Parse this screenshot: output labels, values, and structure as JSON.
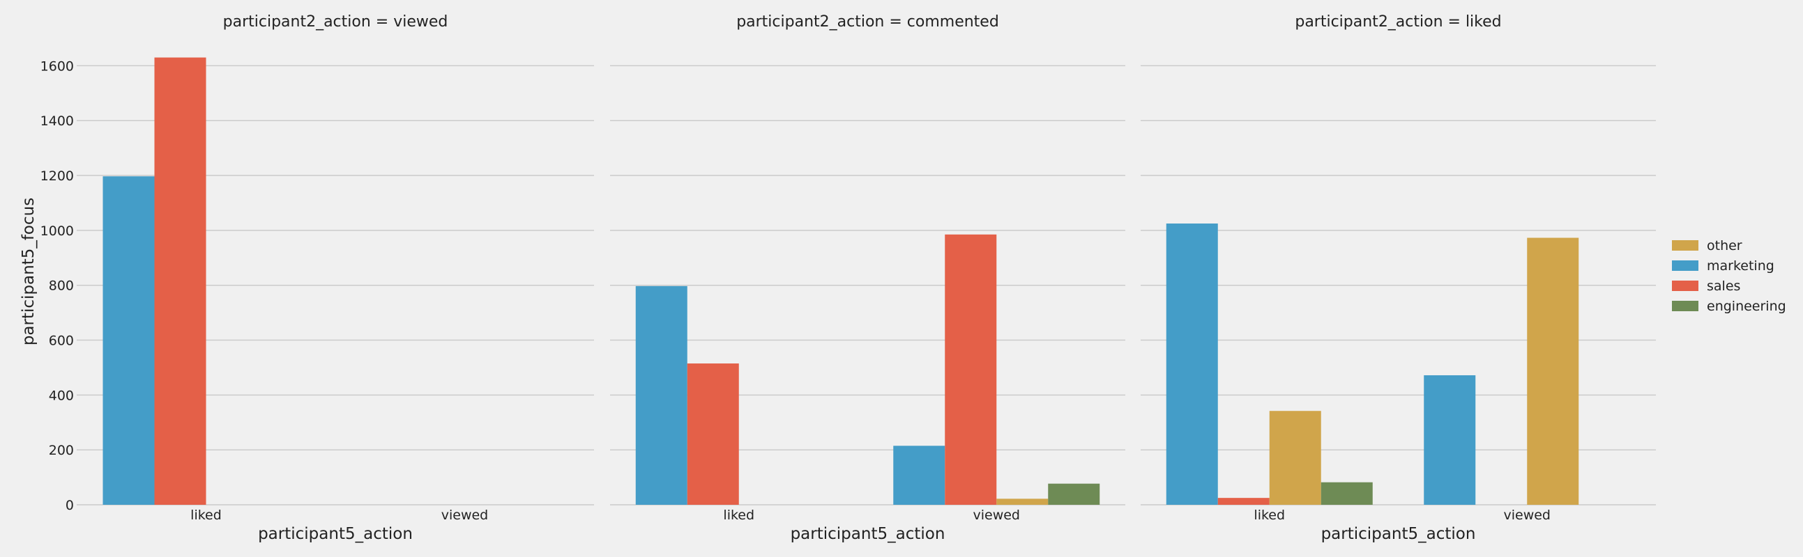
{
  "chart_data": {
    "type": "bar",
    "ylabel": "participant5_focus",
    "xlabel": "participant5_action",
    "ylim": [
      0,
      1700
    ],
    "yticks": [
      0,
      200,
      400,
      600,
      800,
      1000,
      1200,
      1400,
      1600
    ],
    "categories": [
      "liked",
      "viewed"
    ],
    "hue_order": [
      "marketing",
      "sales",
      "other",
      "engineering"
    ],
    "legend": {
      "placement": "right",
      "entries": [
        {
          "name": "other",
          "color": "#d0a54b"
        },
        {
          "name": "marketing",
          "color": "#449dc8"
        },
        {
          "name": "sales",
          "color": "#e46048"
        },
        {
          "name": "engineering",
          "color": "#6e8b55"
        }
      ]
    },
    "grid": true,
    "facets": [
      {
        "title": "participant2_action = viewed",
        "bars": [
          {
            "category": "liked",
            "series": "marketing",
            "value": 1197
          },
          {
            "category": "liked",
            "series": "sales",
            "value": 1630
          }
        ]
      },
      {
        "title": "participant2_action = commented",
        "bars": [
          {
            "category": "liked",
            "series": "marketing",
            "value": 797
          },
          {
            "category": "liked",
            "series": "sales",
            "value": 515
          },
          {
            "category": "viewed",
            "series": "marketing",
            "value": 215
          },
          {
            "category": "viewed",
            "series": "sales",
            "value": 985
          },
          {
            "category": "viewed",
            "series": "other",
            "value": 22
          },
          {
            "category": "viewed",
            "series": "engineering",
            "value": 77
          }
        ]
      },
      {
        "title": "participant2_action = liked",
        "bars": [
          {
            "category": "liked",
            "series": "marketing",
            "value": 1025
          },
          {
            "category": "liked",
            "series": "sales",
            "value": 25
          },
          {
            "category": "liked",
            "series": "other",
            "value": 342
          },
          {
            "category": "liked",
            "series": "engineering",
            "value": 82
          },
          {
            "category": "viewed",
            "series": "marketing",
            "value": 472
          },
          {
            "category": "viewed",
            "series": "other",
            "value": 973
          }
        ]
      }
    ]
  }
}
